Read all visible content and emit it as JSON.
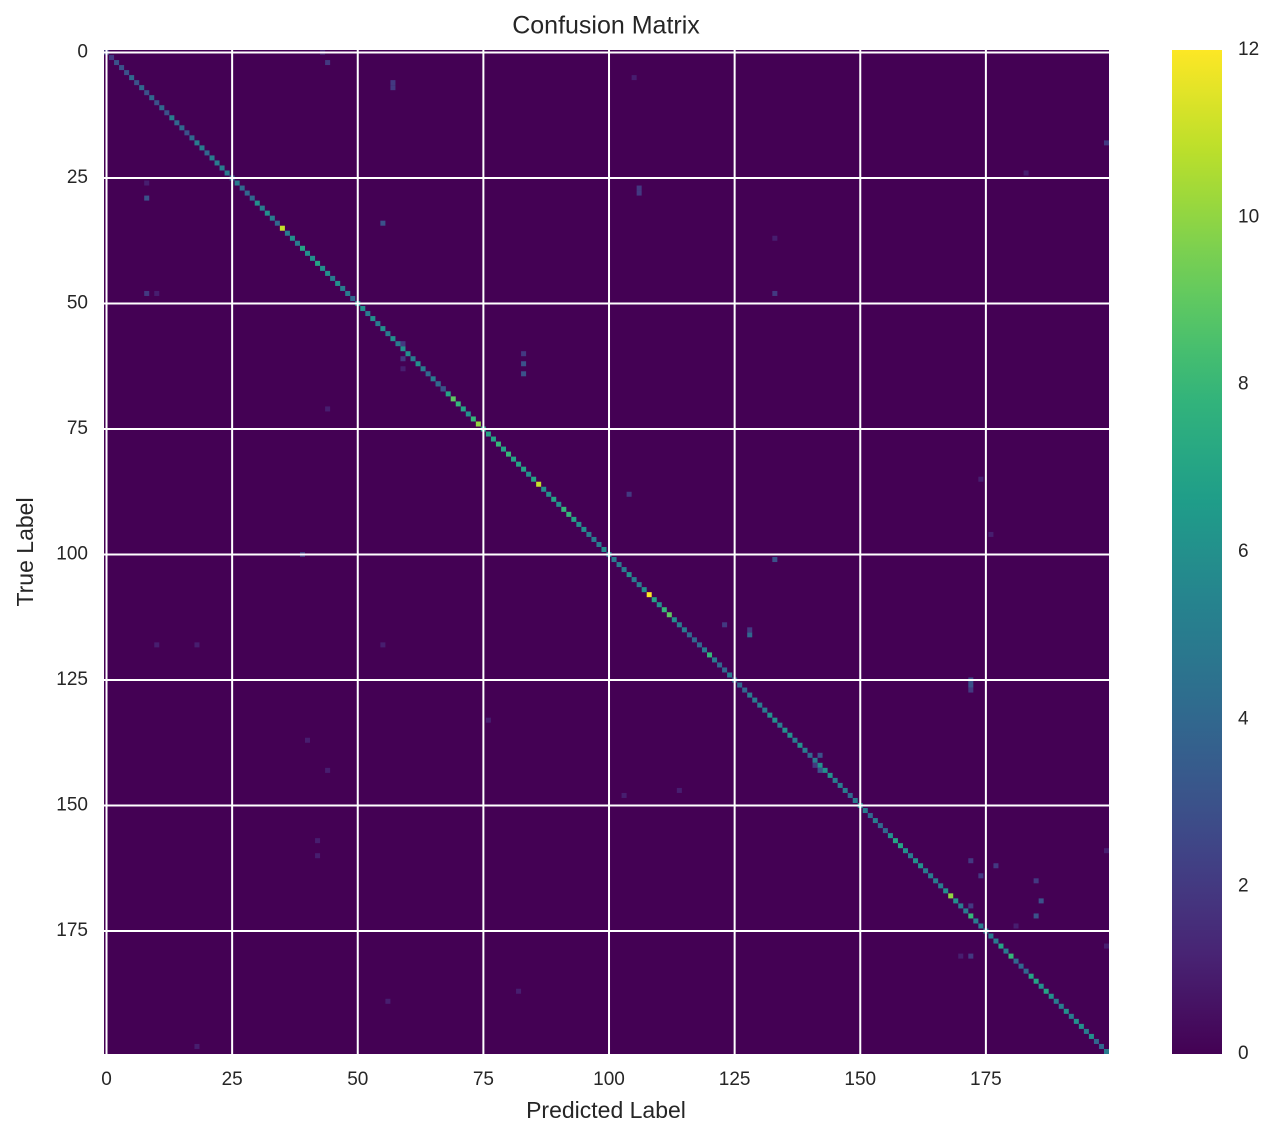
{
  "chart_data": {
    "type": "heatmap",
    "title": "Confusion Matrix",
    "x_label": "Predicted Label",
    "y_label": "True Label",
    "xlim": [
      -0.5,
      199.5
    ],
    "ylim": [
      -0.5,
      199.5
    ],
    "xticks": [
      0,
      25,
      50,
      75,
      100,
      125,
      150,
      175
    ],
    "yticks": [
      0,
      25,
      50,
      75,
      100,
      125,
      150,
      175
    ],
    "grid": true,
    "colormap": "viridis",
    "zlim": [
      0,
      12
    ],
    "colorbar_ticks": [
      0,
      2,
      4,
      6,
      8,
      10,
      12
    ],
    "diagonal": [
      2,
      2,
      3,
      3,
      3,
      4,
      3,
      4,
      3,
      4,
      3,
      4,
      3,
      5,
      4,
      4,
      3,
      4,
      5,
      5,
      4,
      5,
      5,
      5,
      5,
      4,
      5,
      4,
      4,
      4,
      6,
      5,
      6,
      5,
      4,
      11,
      5,
      6,
      5,
      7,
      6,
      6,
      7,
      6,
      6,
      5,
      6,
      5,
      5,
      4,
      6,
      6,
      5,
      6,
      5,
      6,
      5,
      6,
      5,
      6,
      6,
      5,
      6,
      5,
      4,
      5,
      6,
      7,
      7,
      9,
      8,
      7,
      6,
      8,
      10,
      7,
      7,
      7,
      8,
      7,
      8,
      7,
      7,
      7,
      6,
      7,
      11,
      6,
      6,
      7,
      6,
      8,
      8,
      7,
      6,
      6,
      5,
      5,
      5,
      6,
      5,
      5,
      5,
      5,
      6,
      5,
      5,
      6,
      12,
      7,
      6,
      8,
      9,
      6,
      5,
      5,
      4,
      4,
      4,
      5,
      8,
      5,
      4,
      4,
      5,
      4,
      4,
      4,
      5,
      5,
      5,
      5,
      6,
      6,
      5,
      6,
      6,
      5,
      6,
      5,
      4,
      5,
      6,
      6,
      6,
      5,
      5,
      5,
      4,
      5,
      6,
      5,
      4,
      5,
      4,
      4,
      6,
      7,
      7,
      6,
      5,
      6,
      6,
      5,
      5,
      5,
      5,
      6,
      10,
      6,
      5,
      5,
      8,
      5,
      5,
      5,
      5,
      5,
      7,
      5,
      8,
      4,
      4,
      4,
      7,
      7,
      6,
      7,
      6,
      5,
      5,
      6,
      5,
      6,
      6,
      5,
      6,
      4,
      4,
      5
    ],
    "cells": [
      [
        0,
        43,
        1
      ],
      [
        2,
        44,
        2
      ],
      [
        6,
        57,
        2
      ],
      [
        7,
        57,
        2
      ],
      [
        5,
        105,
        1
      ],
      [
        29,
        8,
        3
      ],
      [
        27,
        106,
        2
      ],
      [
        28,
        106,
        2
      ],
      [
        34,
        55,
        3
      ],
      [
        48,
        8,
        2
      ],
      [
        48,
        10,
        1
      ],
      [
        48,
        133,
        2
      ],
      [
        60,
        83,
        2
      ],
      [
        62,
        83,
        3
      ],
      [
        64,
        83,
        3
      ],
      [
        58,
        59,
        2
      ],
      [
        61,
        59,
        2
      ],
      [
        63,
        59,
        1
      ],
      [
        67,
        67,
        3
      ],
      [
        66,
        66,
        4
      ],
      [
        71,
        44,
        1
      ],
      [
        116,
        128,
        4
      ],
      [
        115,
        128,
        2
      ],
      [
        114,
        123,
        2
      ],
      [
        126,
        172,
        3
      ],
      [
        125,
        172,
        3
      ],
      [
        127,
        172,
        2
      ],
      [
        101,
        133,
        3
      ],
      [
        100,
        39,
        2
      ],
      [
        140,
        142,
        3
      ],
      [
        143,
        142,
        3
      ],
      [
        142,
        141,
        2
      ],
      [
        169,
        186,
        3
      ],
      [
        170,
        172,
        2
      ],
      [
        162,
        177,
        2
      ],
      [
        88,
        104,
        2
      ],
      [
        18,
        199,
        2
      ],
      [
        159,
        199,
        1
      ],
      [
        37,
        133,
        1
      ],
      [
        85,
        174,
        1
      ],
      [
        24,
        183,
        1
      ],
      [
        26,
        8,
        1
      ],
      [
        96,
        176,
        1
      ],
      [
        160,
        42,
        1
      ],
      [
        157,
        42,
        1
      ],
      [
        118,
        10,
        1
      ],
      [
        118,
        18,
        1
      ],
      [
        118,
        55,
        1
      ],
      [
        198,
        18,
        1
      ],
      [
        189,
        56,
        1
      ],
      [
        187,
        82,
        1
      ],
      [
        133,
        76,
        1
      ],
      [
        137,
        40,
        1
      ],
      [
        143,
        44,
        1
      ],
      [
        148,
        103,
        1
      ],
      [
        147,
        114,
        1
      ],
      [
        180,
        172,
        2
      ],
      [
        180,
        170,
        1
      ],
      [
        161,
        172,
        2
      ],
      [
        164,
        174,
        2
      ],
      [
        174,
        181,
        1
      ],
      [
        178,
        199,
        1
      ],
      [
        165,
        185,
        2
      ],
      [
        172,
        185,
        3
      ]
    ]
  }
}
